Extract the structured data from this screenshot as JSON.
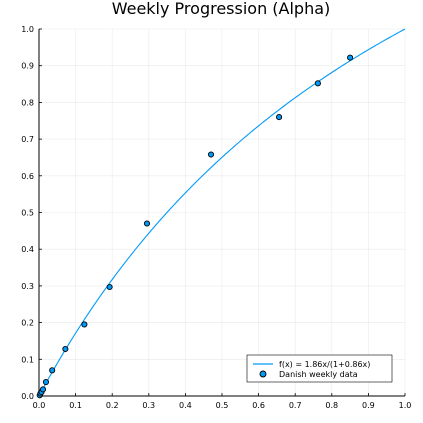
{
  "chart_data": {
    "type": "scatter",
    "title": "Weekly Progression (Alpha)",
    "xlabel": "",
    "ylabel": "",
    "xlim": [
      0.0,
      1.0
    ],
    "ylim": [
      0.0,
      1.0
    ],
    "x_ticks": [
      "0.0",
      "0.1",
      "0.2",
      "0.3",
      "0.4",
      "0.5",
      "0.6",
      "0.7",
      "0.8",
      "0.9",
      "1.0"
    ],
    "y_ticks": [
      "0.0",
      "0.1",
      "0.2",
      "0.3",
      "0.4",
      "0.5",
      "0.6",
      "0.7",
      "0.8",
      "0.9",
      "1.0"
    ],
    "grid": true,
    "legend_position": "bottom-right",
    "series": [
      {
        "name": "f(x) = 1.86x/(1+0.86x)",
        "kind": "line",
        "color": "#009AFA",
        "function": {
          "a": 1.86,
          "b": 0.86
        }
      },
      {
        "name": "Danish weekly data",
        "kind": "scatter",
        "color": "#009AFA",
        "edge_color": "#000000",
        "x": [
          0.002,
          0.004,
          0.007,
          0.011,
          0.019,
          0.036,
          0.072,
          0.124,
          0.193,
          0.295,
          0.47,
          0.656,
          0.762,
          0.85
        ],
        "y": [
          0.002,
          0.007,
          0.011,
          0.018,
          0.038,
          0.07,
          0.128,
          0.195,
          0.297,
          0.47,
          0.658,
          0.76,
          0.852,
          0.922
        ]
      }
    ]
  }
}
